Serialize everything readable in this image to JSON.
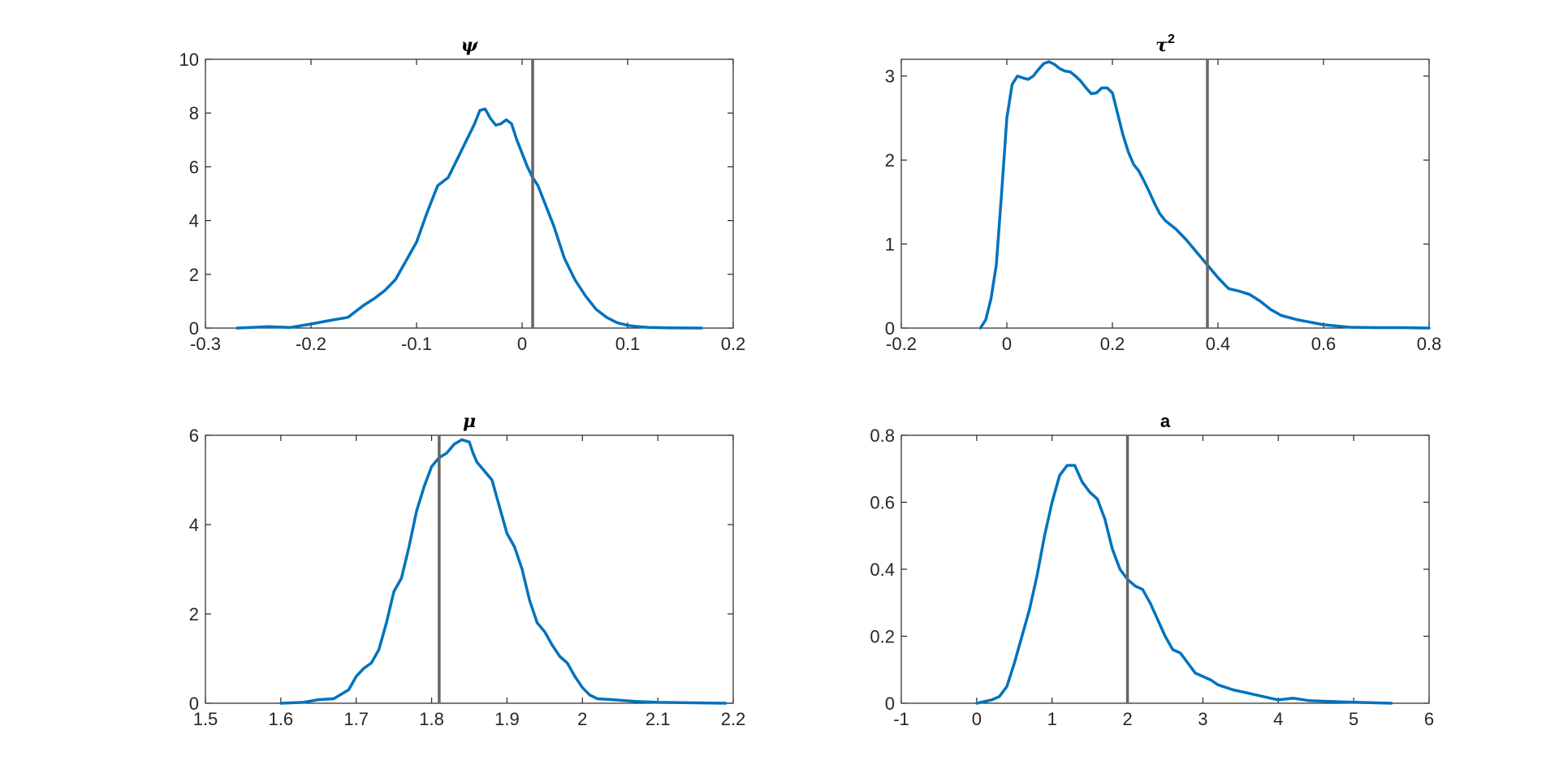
{
  "colors": {
    "density": "#0072BD",
    "reference": "#666666",
    "axes": "#262626",
    "background": "#ffffff"
  },
  "chart_data": [
    {
      "type": "line",
      "title": "ψ",
      "title_superscript": "",
      "title_style": "italic",
      "xlim": [
        -0.3,
        0.2
      ],
      "ylim": [
        0,
        10
      ],
      "x_ticks": [
        -0.3,
        -0.2,
        -0.1,
        0,
        0.1,
        0.2
      ],
      "x_tick_labels": [
        "-0.3",
        "-0.2",
        "-0.1",
        "0",
        "0.1",
        "0.2"
      ],
      "y_ticks": [
        0,
        2,
        4,
        6,
        8,
        10
      ],
      "y_tick_labels": [
        "0",
        "2",
        "4",
        "6",
        "8",
        "10"
      ],
      "reference_line_x": 0.01,
      "x": [
        -0.27,
        -0.24,
        -0.22,
        -0.2,
        -0.18,
        -0.165,
        -0.15,
        -0.14,
        -0.13,
        -0.12,
        -0.11,
        -0.1,
        -0.09,
        -0.08,
        -0.075,
        -0.07,
        -0.065,
        -0.06,
        -0.055,
        -0.05,
        -0.045,
        -0.04,
        -0.035,
        -0.03,
        -0.025,
        -0.02,
        -0.015,
        -0.01,
        -0.005,
        0,
        0.005,
        0.01,
        0.015,
        0.02,
        0.03,
        0.04,
        0.05,
        0.06,
        0.07,
        0.08,
        0.09,
        0.1,
        0.11,
        0.12,
        0.14,
        0.17
      ],
      "y": [
        0,
        0.05,
        0.02,
        0.15,
        0.3,
        0.4,
        0.85,
        1.1,
        1.4,
        1.8,
        2.5,
        3.2,
        4.3,
        5.3,
        5.45,
        5.6,
        6.0,
        6.4,
        6.8,
        7.2,
        7.6,
        8.1,
        8.15,
        7.8,
        7.55,
        7.6,
        7.75,
        7.6,
        7.0,
        6.5,
        6.0,
        5.6,
        5.3,
        4.8,
        3.8,
        2.6,
        1.8,
        1.2,
        0.7,
        0.4,
        0.2,
        0.1,
        0.05,
        0.02,
        0.01,
        0
      ]
    },
    {
      "type": "line",
      "title": "τ",
      "title_superscript": "2",
      "title_style": "italic",
      "xlim": [
        -0.2,
        0.8
      ],
      "ylim": [
        0,
        3.2
      ],
      "x_ticks": [
        -0.2,
        0,
        0.2,
        0.4,
        0.6,
        0.8
      ],
      "x_tick_labels": [
        "-0.2",
        "0",
        "0.2",
        "0.4",
        "0.6",
        "0.8"
      ],
      "y_ticks": [
        0,
        1,
        2,
        3
      ],
      "y_tick_labels": [
        "0",
        "1",
        "2",
        "3"
      ],
      "reference_line_x": 0.38,
      "x": [
        -0.05,
        -0.04,
        -0.03,
        -0.02,
        -0.01,
        0,
        0.01,
        0.02,
        0.03,
        0.04,
        0.05,
        0.06,
        0.07,
        0.08,
        0.09,
        0.1,
        0.11,
        0.12,
        0.13,
        0.14,
        0.15,
        0.16,
        0.17,
        0.18,
        0.19,
        0.2,
        0.21,
        0.22,
        0.23,
        0.24,
        0.25,
        0.26,
        0.27,
        0.28,
        0.29,
        0.3,
        0.32,
        0.34,
        0.36,
        0.38,
        0.4,
        0.42,
        0.44,
        0.46,
        0.48,
        0.5,
        0.52,
        0.55,
        0.6,
        0.65,
        0.7,
        0.75,
        0.8
      ],
      "y": [
        0,
        0.1,
        0.35,
        0.75,
        1.6,
        2.5,
        2.9,
        3.0,
        2.98,
        2.96,
        3.0,
        3.08,
        3.15,
        3.17,
        3.14,
        3.09,
        3.06,
        3.05,
        3.0,
        2.94,
        2.86,
        2.79,
        2.8,
        2.86,
        2.86,
        2.8,
        2.55,
        2.3,
        2.1,
        1.95,
        1.87,
        1.75,
        1.62,
        1.48,
        1.36,
        1.28,
        1.18,
        1.05,
        0.9,
        0.75,
        0.6,
        0.47,
        0.44,
        0.4,
        0.32,
        0.22,
        0.15,
        0.1,
        0.04,
        0.01,
        0.005,
        0.005,
        0
      ]
    },
    {
      "type": "line",
      "title": "μ",
      "title_superscript": "",
      "title_style": "italic",
      "xlim": [
        1.5,
        2.2
      ],
      "ylim": [
        0,
        6
      ],
      "x_ticks": [
        1.5,
        1.6,
        1.7,
        1.8,
        1.9,
        2,
        2.1,
        2.2
      ],
      "x_tick_labels": [
        "1.5",
        "1.6",
        "1.7",
        "1.8",
        "1.9",
        "2",
        "2.1",
        "2.2"
      ],
      "y_ticks": [
        0,
        2,
        4,
        6
      ],
      "y_tick_labels": [
        "0",
        "2",
        "4",
        "6"
      ],
      "reference_line_x": 1.81,
      "x": [
        1.6,
        1.63,
        1.65,
        1.67,
        1.69,
        1.7,
        1.71,
        1.72,
        1.73,
        1.74,
        1.75,
        1.76,
        1.77,
        1.78,
        1.79,
        1.8,
        1.81,
        1.82,
        1.83,
        1.84,
        1.85,
        1.855,
        1.86,
        1.87,
        1.875,
        1.88,
        1.89,
        1.9,
        1.91,
        1.92,
        1.93,
        1.94,
        1.95,
        1.96,
        1.97,
        1.98,
        1.99,
        2.0,
        2.01,
        2.02,
        2.04,
        2.07,
        2.1,
        2.15,
        2.19
      ],
      "y": [
        0,
        0.02,
        0.08,
        0.1,
        0.3,
        0.6,
        0.78,
        0.9,
        1.2,
        1.8,
        2.5,
        2.8,
        3.5,
        4.3,
        4.85,
        5.3,
        5.5,
        5.6,
        5.8,
        5.9,
        5.85,
        5.6,
        5.4,
        5.2,
        5.1,
        5.0,
        4.4,
        3.8,
        3.5,
        3.0,
        2.3,
        1.8,
        1.6,
        1.3,
        1.05,
        0.9,
        0.6,
        0.35,
        0.18,
        0.1,
        0.08,
        0.04,
        0.02,
        0.01,
        0
      ]
    },
    {
      "type": "line",
      "title": "a",
      "title_superscript": "",
      "title_style": "upright",
      "xlim": [
        -1,
        6
      ],
      "ylim": [
        0,
        0.8
      ],
      "x_ticks": [
        -1,
        0,
        1,
        2,
        3,
        4,
        5,
        6
      ],
      "x_tick_labels": [
        "-1",
        "0",
        "1",
        "2",
        "3",
        "4",
        "5",
        "6"
      ],
      "y_ticks": [
        0,
        0.2,
        0.4,
        0.6,
        0.8
      ],
      "y_tick_labels": [
        "0",
        "0.2",
        "0.4",
        "0.6",
        "0.8"
      ],
      "reference_line_x": 2.0,
      "x": [
        0,
        0.2,
        0.3,
        0.4,
        0.5,
        0.6,
        0.7,
        0.8,
        0.9,
        1.0,
        1.1,
        1.2,
        1.3,
        1.4,
        1.5,
        1.6,
        1.7,
        1.8,
        1.9,
        2.0,
        2.1,
        2.2,
        2.3,
        2.4,
        2.5,
        2.6,
        2.7,
        2.8,
        2.9,
        3.0,
        3.1,
        3.2,
        3.4,
        3.6,
        3.8,
        4.0,
        4.2,
        4.4,
        4.6,
        5.0,
        5.5
      ],
      "y": [
        0,
        0.01,
        0.02,
        0.05,
        0.12,
        0.2,
        0.28,
        0.38,
        0.5,
        0.6,
        0.68,
        0.71,
        0.71,
        0.66,
        0.63,
        0.61,
        0.55,
        0.46,
        0.4,
        0.37,
        0.35,
        0.34,
        0.3,
        0.25,
        0.2,
        0.16,
        0.15,
        0.12,
        0.09,
        0.08,
        0.07,
        0.055,
        0.04,
        0.03,
        0.02,
        0.01,
        0.015,
        0.008,
        0.006,
        0.003,
        0
      ]
    }
  ]
}
